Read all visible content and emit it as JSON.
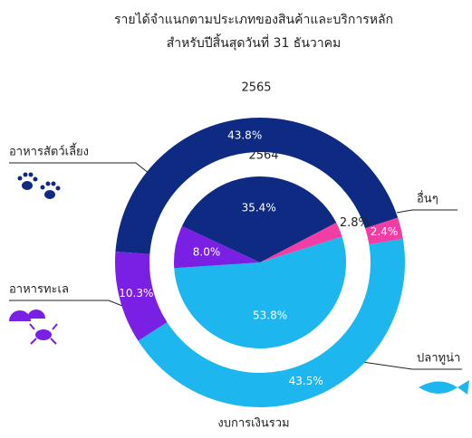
{
  "chart_data": {
    "type": "donut",
    "title": [
      "รายได้จำแนกตามประเภทของสินค้าและบริการหลัก",
      "สำหรับปีสิ้นสุดวันที่ 31 ธันวาคม"
    ],
    "categories": [
      "อาหารสัตว์เลี้ยง",
      "อื่นๆ",
      "ปลาทูน่า",
      "อาหารทะเล"
    ],
    "colors": [
      "#0e2a82",
      "#f23ea4",
      "#1db6ee",
      "#7a1fe4"
    ],
    "series": [
      {
        "name": "2565",
        "values": [
          43.8,
          2.4,
          43.5,
          10.3
        ],
        "value_labels": [
          "43.8%",
          "2.4%",
          "43.5%",
          "10.3%"
        ]
      },
      {
        "name": "2564",
        "values": [
          35.4,
          2.8,
          53.8,
          8.0
        ],
        "value_labels": [
          "35.4%",
          "2.8%",
          "53.8%",
          "8.0%"
        ]
      }
    ],
    "footer": "งบการเงินรวม"
  }
}
